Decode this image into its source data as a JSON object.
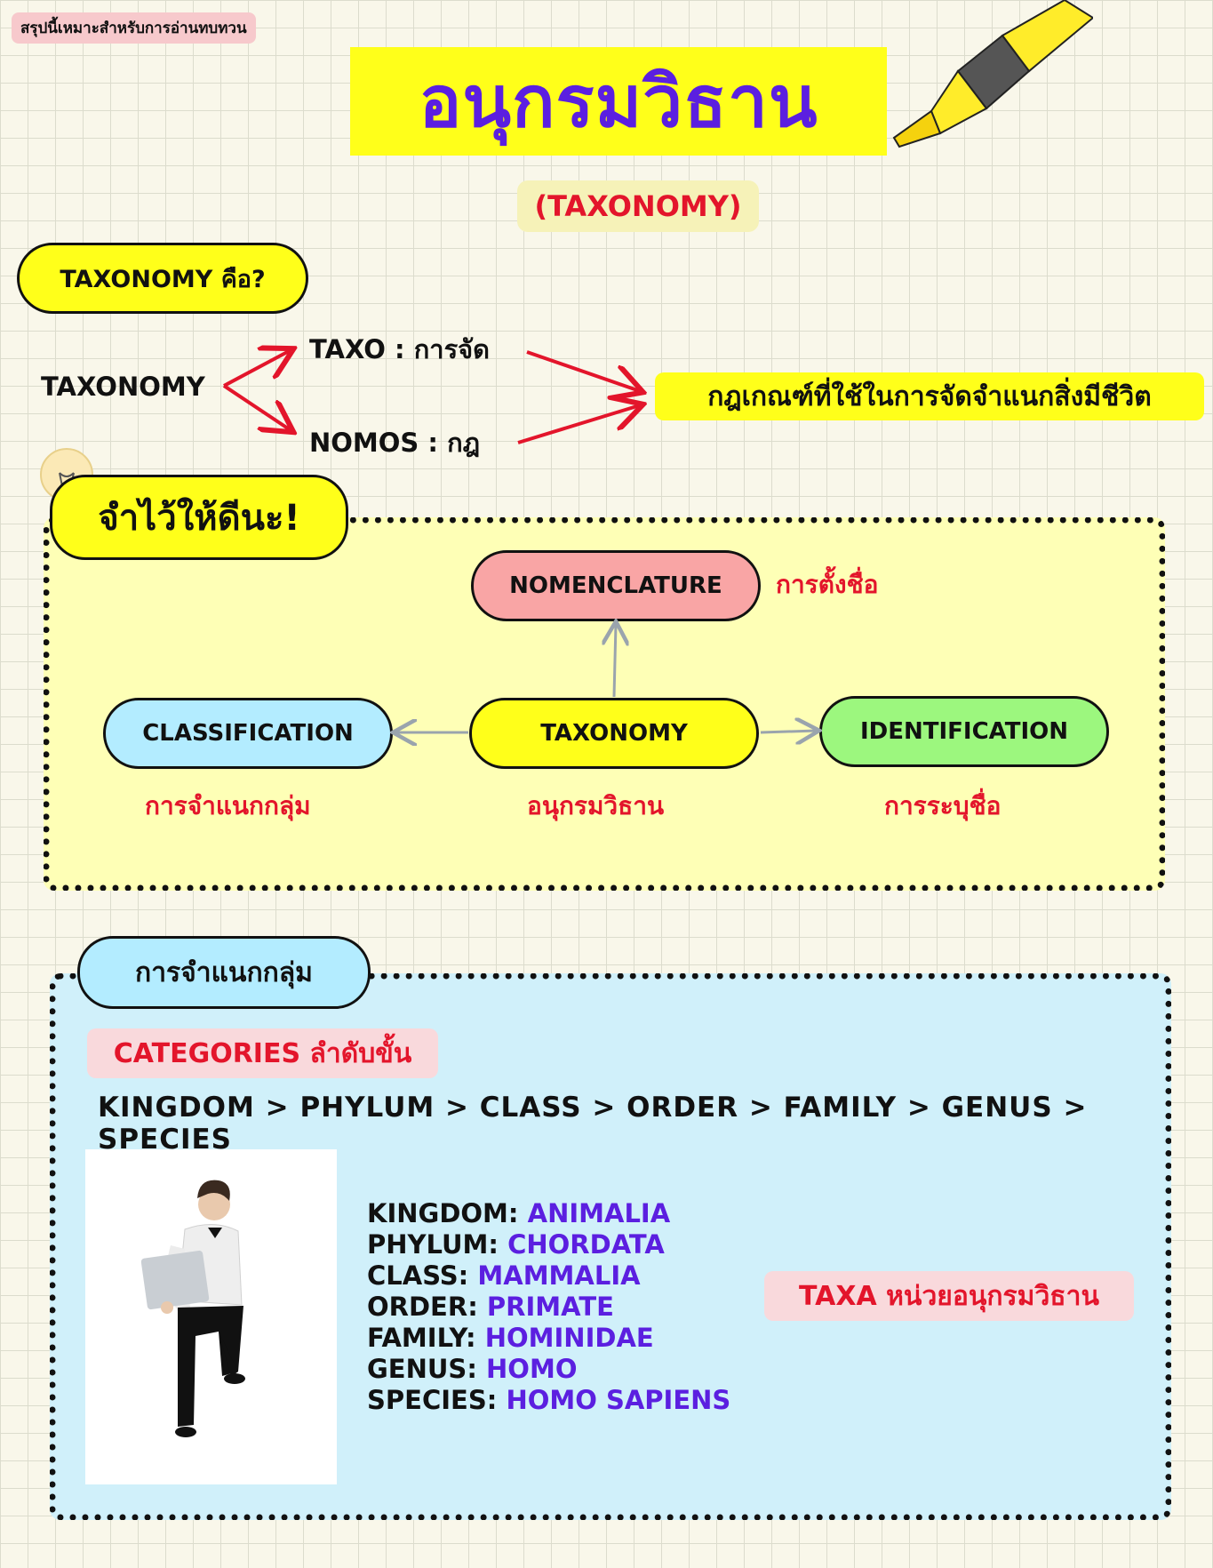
{
  "header": {
    "tag": "สรุปนี้เหมาะสำหรับการอ่านทบทวน",
    "title": "อนุกรมวิธาน",
    "subtitle": "(TAXONOMY)"
  },
  "definition": {
    "heading": "TAXONOMY คือ?",
    "root": "TAXONOMY",
    "part1": "TAXO : การจัด",
    "part2": "NOMOS : กฎ",
    "meaning": "กฎเกณฑ์ที่ใช้ในการจัดจำแนกสิ่งมีชีวิต"
  },
  "remember": {
    "heading": "จำไว้ให้ดีนะ!",
    "center": {
      "label": "TAXONOMY",
      "thai": "อนุกรมวิธาน",
      "color": "#ffff1a"
    },
    "top": {
      "label": "NOMENCLATURE",
      "thai": "การตั้งชื่อ",
      "color": "#f9a5a5"
    },
    "left": {
      "label": "CLASSIFICATION",
      "thai": "การจำแนกกลุ่ม",
      "color": "#b3ecff"
    },
    "right": {
      "label": "IDENTIFICATION",
      "thai": "การระบุชื่อ",
      "color": "#9cf77e"
    }
  },
  "classification": {
    "heading": "การจำแนกกลุ่ม",
    "categories_tag": "CATEGORIES ลำดับขั้น",
    "chain": "KINGDOM > PHYLUM > CLASS > ORDER > FAMILY > GENUS > SPECIES",
    "taxa": [
      {
        "rank": "KINGDOM:",
        "value": "ANIMALIA"
      },
      {
        "rank": "PHYLUM:",
        "value": "CHORDATA"
      },
      {
        "rank": "CLASS:",
        "value": "MAMMALIA"
      },
      {
        "rank": "ORDER:",
        "value": "PRIMATE"
      },
      {
        "rank": "FAMILY:",
        "value": "HOMINIDAE"
      },
      {
        "rank": "GENUS:",
        "value": "HOMO"
      },
      {
        "rank": "SPECIES:",
        "value": "HOMO SAPIENS"
      }
    ],
    "taxa_tag": "TAXA หน่วยอนุกรมวิธาน"
  },
  "colors": {
    "title_purple": "#5b1fe0",
    "accent_red": "#e3152b",
    "highlight_yellow": "#ffff1a",
    "section_blue": "#d0f0fa",
    "section_yellow": "#feffb6"
  }
}
